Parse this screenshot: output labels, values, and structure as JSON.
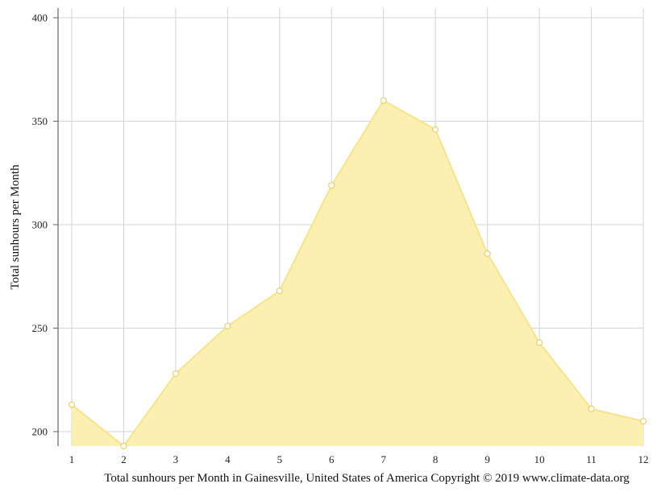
{
  "chart_data": {
    "type": "area",
    "x": [
      1,
      2,
      3,
      4,
      5,
      6,
      7,
      8,
      9,
      10,
      11,
      12
    ],
    "series": [
      {
        "values": [
          213,
          193,
          228,
          251,
          268,
          319,
          360,
          346,
          286,
          243,
          211,
          205
        ],
        "color": "#fbeeae",
        "stroke": "#f7e48a"
      }
    ],
    "ylabel": "Total sunhours per Month",
    "xlabel": "Total sunhours per Month in Gainesville, United States of America Copyright © 2019 www.climate-data.org",
    "ylim": [
      193,
      400
    ],
    "yticks": [
      200,
      250,
      300,
      350,
      400
    ],
    "grid": true
  }
}
